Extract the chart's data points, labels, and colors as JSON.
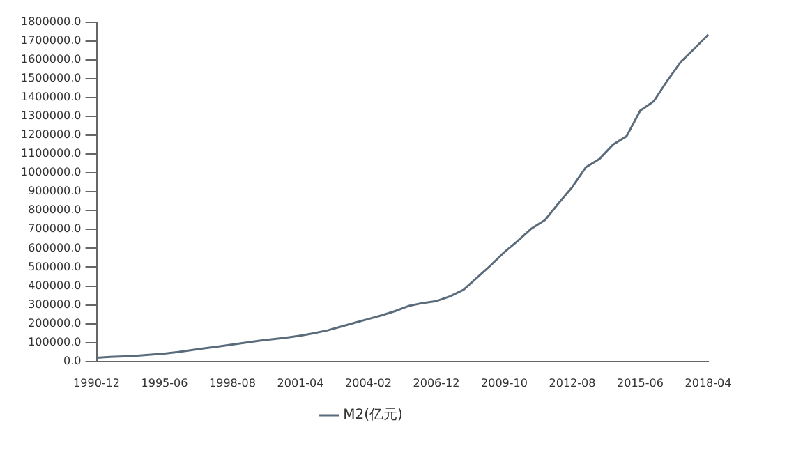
{
  "chart_data": {
    "type": "line",
    "categories": [
      "1990-12",
      null,
      null,
      null,
      null,
      "1995-06",
      null,
      null,
      null,
      null,
      "1998-08",
      null,
      null,
      null,
      null,
      "2001-04",
      null,
      null,
      null,
      null,
      "2004-02",
      null,
      null,
      null,
      null,
      "2006-12",
      null,
      null,
      null,
      null,
      "2009-10",
      null,
      null,
      null,
      null,
      "2012-08",
      null,
      null,
      null,
      null,
      "2015-06",
      null,
      null,
      null,
      null,
      "2018-04"
    ],
    "series": [
      {
        "name": "M2(亿元)",
        "color": "#5a6b7b",
        "values": [
          20000,
          24000,
          27000,
          31000,
          36000,
          42000,
          50000,
          60000,
          70000,
          80000,
          90000,
          100000,
          110000,
          118000,
          127000,
          137000,
          150000,
          165000,
          185000,
          205000,
          225000,
          245000,
          268000,
          295000,
          310000,
          320000,
          345000,
          380000,
          445000,
          510000,
          580000,
          640000,
          705000,
          750000,
          840000,
          925000,
          1030000,
          1074000,
          1150000,
          1195000,
          1330000,
          1380000,
          1490000,
          1590000,
          1660000,
          1733000
        ]
      }
    ],
    "ylim": [
      0,
      1800000
    ],
    "yticks": [
      {
        "value": 0,
        "label": "0.0"
      },
      {
        "value": 100000,
        "label": "100000.0"
      },
      {
        "value": 200000,
        "label": "200000.0"
      },
      {
        "value": 300000,
        "label": "300000.0"
      },
      {
        "value": 400000,
        "label": "400000.0"
      },
      {
        "value": 500000,
        "label": "500000.0"
      },
      {
        "value": 600000,
        "label": "600000.0"
      },
      {
        "value": 700000,
        "label": "700000.0"
      },
      {
        "value": 800000,
        "label": "800000.0"
      },
      {
        "value": 900000,
        "label": "900000.0"
      },
      {
        "value": 1000000,
        "label": "1000000.0"
      },
      {
        "value": 1100000,
        "label": "1100000.0"
      },
      {
        "value": 1200000,
        "label": "1200000.0"
      },
      {
        "value": 1300000,
        "label": "1300000.0"
      },
      {
        "value": 1400000,
        "label": "1400000.0"
      },
      {
        "value": 1500000,
        "label": "1500000.0"
      },
      {
        "value": 1600000,
        "label": "1600000.0"
      },
      {
        "value": 1700000,
        "label": "1700000.0"
      },
      {
        "value": 1800000,
        "label": "1800000.0"
      }
    ],
    "grid": false,
    "legend": "bottom",
    "marker": "none",
    "line_style": "solid"
  }
}
